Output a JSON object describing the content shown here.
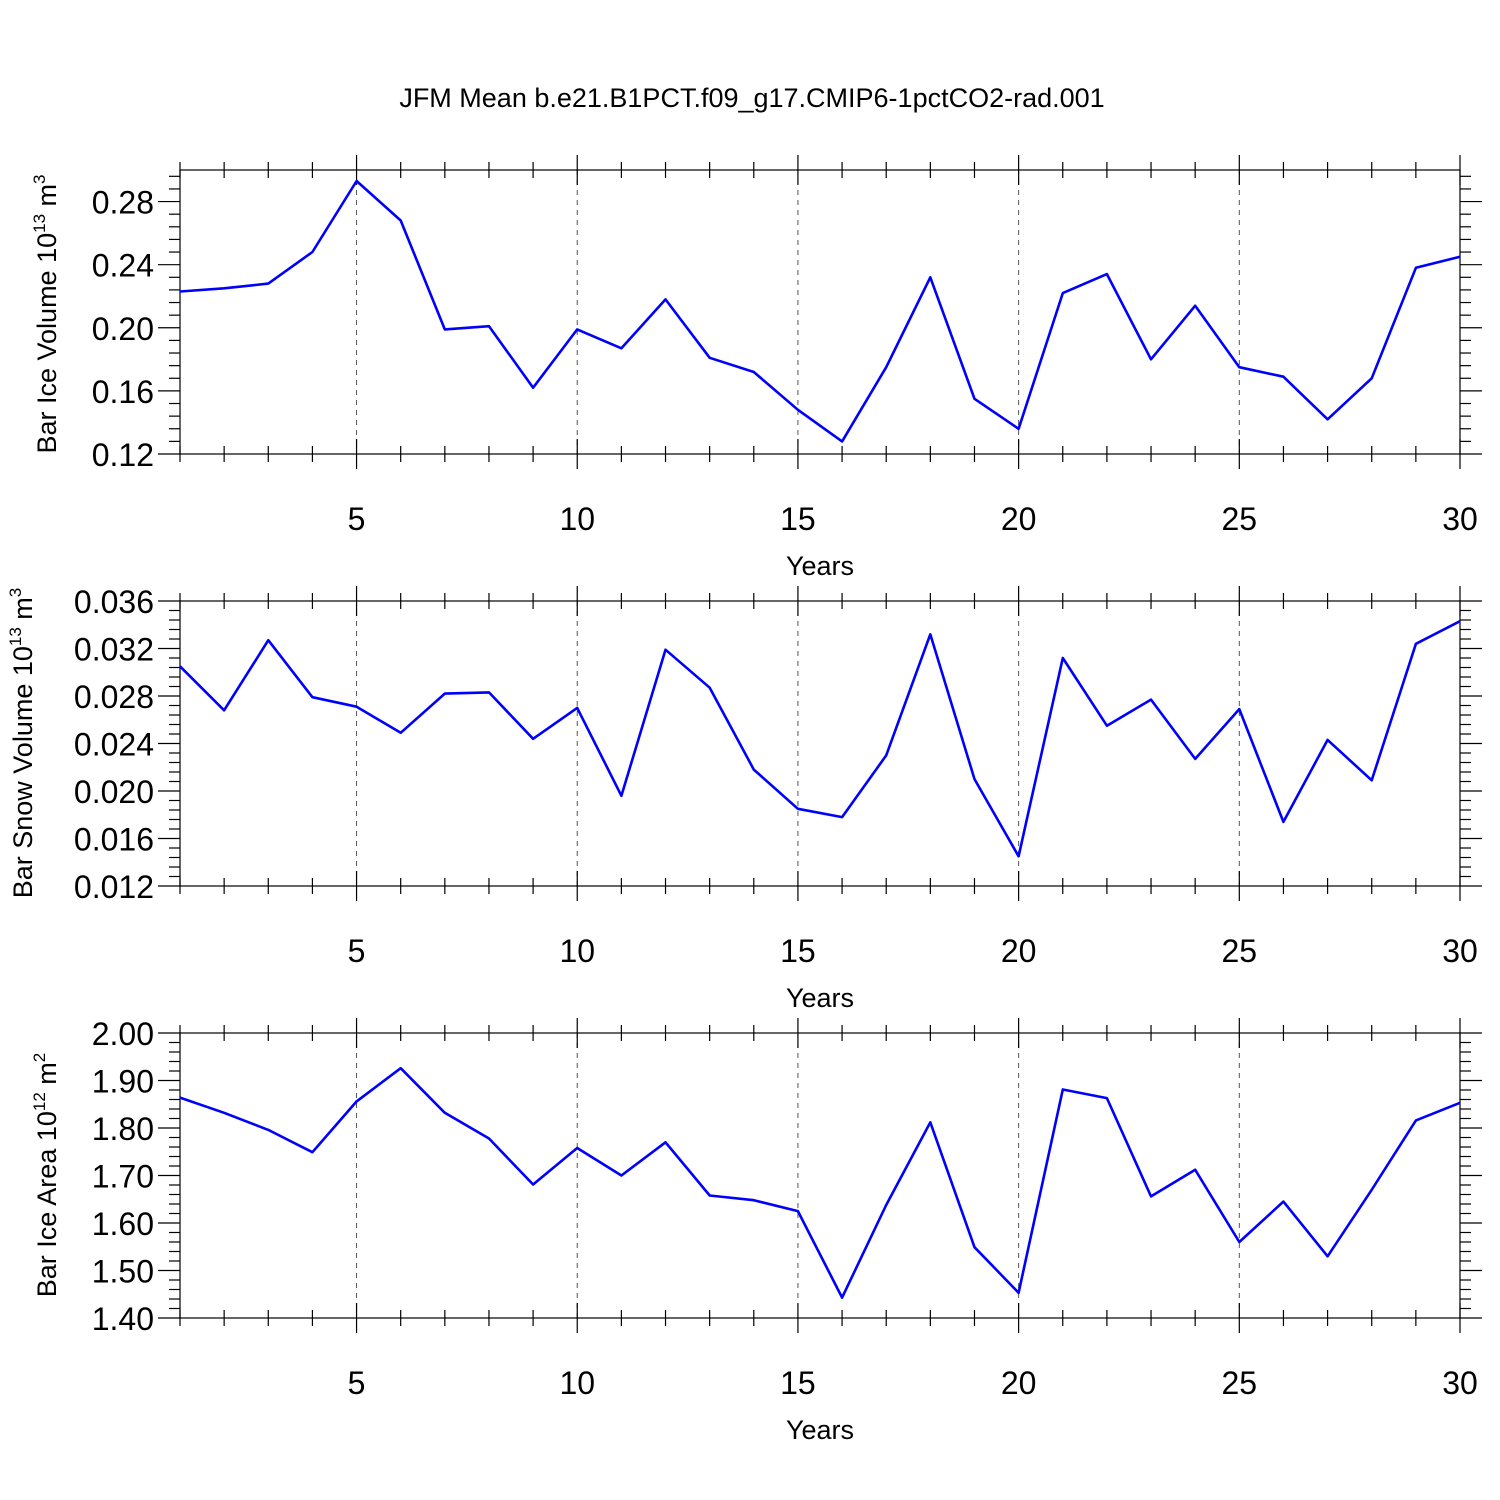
{
  "title": "JFM Mean b.e21.B1PCT.f09_g17.CMIP6-1pctCO2-rad.001",
  "colors": {
    "series": "#0000ff",
    "axis": "#000000",
    "grid": "#555555"
  },
  "chart_data": [
    {
      "type": "line",
      "ylabel": {
        "main": "Bar Ice Volume 10",
        "sup1": "13",
        "mid": " m",
        "sup2": "3"
      },
      "xlabel": "Years",
      "xlim": [
        1,
        30
      ],
      "ylim": [
        0.12,
        0.3
      ],
      "x_ticks": [
        5,
        10,
        15,
        20,
        25,
        30
      ],
      "y_ticks": [
        0.12,
        0.16,
        0.2,
        0.24,
        0.28
      ],
      "y_tick_labels": [
        "0.12",
        "0.16",
        "0.20",
        "0.24",
        "0.28"
      ],
      "grid": "dashed vertical at major x ticks",
      "x": [
        1,
        2,
        3,
        4,
        5,
        6,
        7,
        8,
        9,
        10,
        11,
        12,
        13,
        14,
        15,
        16,
        17,
        18,
        19,
        20,
        21,
        22,
        23,
        24,
        25,
        26,
        27,
        28,
        29,
        30
      ],
      "values": [
        0.223,
        0.225,
        0.228,
        0.248,
        0.293,
        0.268,
        0.199,
        0.201,
        0.162,
        0.199,
        0.187,
        0.218,
        0.181,
        0.172,
        0.148,
        0.128,
        0.175,
        0.232,
        0.155,
        0.136,
        0.222,
        0.234,
        0.18,
        0.214,
        0.175,
        0.169,
        0.142,
        0.168,
        0.238,
        0.245
      ]
    },
    {
      "type": "line",
      "ylabel": {
        "main": "Bar Snow Volume 10",
        "sup1": "13",
        "mid": " m",
        "sup2": "3"
      },
      "xlabel": "Years",
      "xlim": [
        1,
        30
      ],
      "ylim": [
        0.012,
        0.036
      ],
      "x_ticks": [
        5,
        10,
        15,
        20,
        25,
        30
      ],
      "y_ticks": [
        0.012,
        0.016,
        0.02,
        0.024,
        0.028,
        0.032,
        0.036
      ],
      "y_tick_labels": [
        "0.012",
        "0.016",
        "0.020",
        "0.024",
        "0.028",
        "0.032",
        "0.036"
      ],
      "grid": "dashed vertical at major x ticks",
      "x": [
        1,
        2,
        3,
        4,
        5,
        6,
        7,
        8,
        9,
        10,
        11,
        12,
        13,
        14,
        15,
        16,
        17,
        18,
        19,
        20,
        21,
        22,
        23,
        24,
        25,
        26,
        27,
        28,
        29,
        30
      ],
      "values": [
        0.0305,
        0.0268,
        0.0327,
        0.0279,
        0.0271,
        0.0249,
        0.0282,
        0.0283,
        0.0244,
        0.027,
        0.0196,
        0.0319,
        0.0287,
        0.0218,
        0.0185,
        0.0178,
        0.023,
        0.0332,
        0.021,
        0.0145,
        0.0312,
        0.0255,
        0.0277,
        0.0227,
        0.0269,
        0.0174,
        0.0243,
        0.0209,
        0.0324,
        0.0343
      ]
    },
    {
      "type": "line",
      "ylabel": {
        "main": "Bar Ice Area 10",
        "sup1": "12",
        "mid": " m",
        "sup2": "2"
      },
      "xlabel": "Years",
      "xlim": [
        1,
        30
      ],
      "ylim": [
        1.4,
        2.0
      ],
      "x_ticks": [
        5,
        10,
        15,
        20,
        25,
        30
      ],
      "y_ticks": [
        1.4,
        1.5,
        1.6,
        1.7,
        1.8,
        1.9,
        2.0
      ],
      "y_tick_labels": [
        "1.40",
        "1.50",
        "1.60",
        "1.70",
        "1.80",
        "1.90",
        "2.00"
      ],
      "grid": "dashed vertical at major x ticks",
      "x": [
        1,
        2,
        3,
        4,
        5,
        6,
        7,
        8,
        9,
        10,
        11,
        12,
        13,
        14,
        15,
        16,
        17,
        18,
        19,
        20,
        21,
        22,
        23,
        24,
        25,
        26,
        27,
        28,
        29,
        30
      ],
      "values": [
        1.864,
        1.832,
        1.796,
        1.749,
        1.856,
        1.926,
        1.832,
        1.778,
        1.681,
        1.758,
        1.7,
        1.77,
        1.658,
        1.648,
        1.625,
        1.443,
        1.638,
        1.812,
        1.549,
        1.453,
        1.881,
        1.863,
        1.656,
        1.712,
        1.56,
        1.645,
        1.53,
        1.67,
        1.816,
        1.853
      ]
    }
  ]
}
